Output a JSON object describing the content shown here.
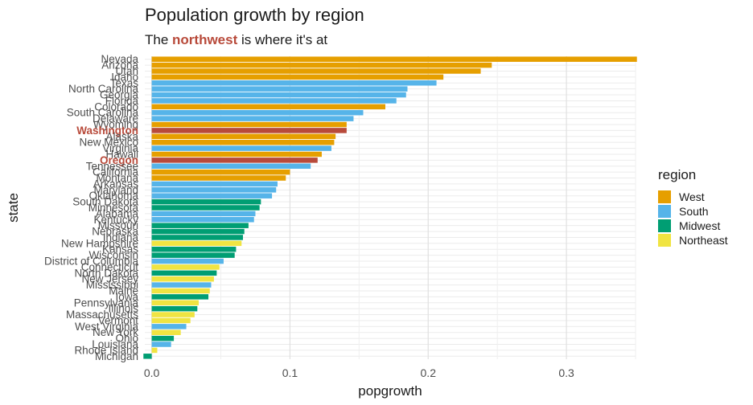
{
  "chart_data": {
    "type": "bar",
    "orientation": "horizontal",
    "title": "Population growth by region",
    "subtitle": {
      "before": "The ",
      "highlight": "northwest",
      "after": " is where it's at"
    },
    "xlabel": "popgrowth",
    "ylabel": "state",
    "xlim": [
      -0.005,
      0.35
    ],
    "xticks": [
      {
        "value": 0.0,
        "label": "0.0"
      },
      {
        "value": 0.1,
        "label": "0.1"
      },
      {
        "value": 0.2,
        "label": "0.2"
      },
      {
        "value": 0.3,
        "label": "0.3"
      }
    ],
    "grid": true,
    "legend": {
      "title": "region",
      "position": "right",
      "items": [
        {
          "name": "West",
          "color": "#E69F00"
        },
        {
          "name": "South",
          "color": "#56B4E9"
        },
        {
          "name": "Midwest",
          "color": "#009E73"
        },
        {
          "name": "Northeast",
          "color": "#F0E442"
        }
      ]
    },
    "highlight_color": "#B84A3A",
    "bars": [
      {
        "state": "Nevada",
        "value": 0.351,
        "region": "West"
      },
      {
        "state": "Arizona",
        "value": 0.246,
        "region": "West"
      },
      {
        "state": "Utah",
        "value": 0.238,
        "region": "West"
      },
      {
        "state": "Idaho",
        "value": 0.211,
        "region": "West"
      },
      {
        "state": "Texas",
        "value": 0.206,
        "region": "South"
      },
      {
        "state": "North Carolina",
        "value": 0.185,
        "region": "South"
      },
      {
        "state": "Georgia",
        "value": 0.184,
        "region": "South"
      },
      {
        "state": "Florida",
        "value": 0.177,
        "region": "South"
      },
      {
        "state": "Colorado",
        "value": 0.169,
        "region": "West"
      },
      {
        "state": "South Carolina",
        "value": 0.153,
        "region": "South"
      },
      {
        "state": "Delaware",
        "value": 0.146,
        "region": "South"
      },
      {
        "state": "Wyoming",
        "value": 0.141,
        "region": "West"
      },
      {
        "state": "Washington",
        "value": 0.141,
        "region": "West",
        "highlight": true
      },
      {
        "state": "Alaska",
        "value": 0.133,
        "region": "West"
      },
      {
        "state": "New Mexico",
        "value": 0.132,
        "region": "West"
      },
      {
        "state": "Virginia",
        "value": 0.13,
        "region": "South"
      },
      {
        "state": "Hawaii",
        "value": 0.123,
        "region": "West"
      },
      {
        "state": "Oregon",
        "value": 0.12,
        "region": "West",
        "highlight": true
      },
      {
        "state": "Tennessee",
        "value": 0.115,
        "region": "South"
      },
      {
        "state": "California",
        "value": 0.1,
        "region": "West"
      },
      {
        "state": "Montana",
        "value": 0.097,
        "region": "West"
      },
      {
        "state": "Arkansas",
        "value": 0.091,
        "region": "South"
      },
      {
        "state": "Maryland",
        "value": 0.09,
        "region": "South"
      },
      {
        "state": "Oklahoma",
        "value": 0.087,
        "region": "South"
      },
      {
        "state": "South Dakota",
        "value": 0.079,
        "region": "Midwest"
      },
      {
        "state": "Minnesota",
        "value": 0.078,
        "region": "Midwest"
      },
      {
        "state": "Alabama",
        "value": 0.075,
        "region": "South"
      },
      {
        "state": "Kentucky",
        "value": 0.074,
        "region": "South"
      },
      {
        "state": "Missouri",
        "value": 0.07,
        "region": "Midwest"
      },
      {
        "state": "Nebraska",
        "value": 0.067,
        "region": "Midwest"
      },
      {
        "state": "Indiana",
        "value": 0.066,
        "region": "Midwest"
      },
      {
        "state": "New Hampshire",
        "value": 0.065,
        "region": "Northeast"
      },
      {
        "state": "Kansas",
        "value": 0.061,
        "region": "Midwest"
      },
      {
        "state": "Wisconsin",
        "value": 0.06,
        "region": "Midwest"
      },
      {
        "state": "District of Columbia",
        "value": 0.052,
        "region": "South"
      },
      {
        "state": "Connecticut",
        "value": 0.049,
        "region": "Northeast"
      },
      {
        "state": "North Dakota",
        "value": 0.047,
        "region": "Midwest"
      },
      {
        "state": "New Jersey",
        "value": 0.045,
        "region": "Northeast"
      },
      {
        "state": "Mississippi",
        "value": 0.043,
        "region": "South"
      },
      {
        "state": "Maine",
        "value": 0.042,
        "region": "Northeast"
      },
      {
        "state": "Iowa",
        "value": 0.041,
        "region": "Midwest"
      },
      {
        "state": "Pennsylvania",
        "value": 0.034,
        "region": "Northeast"
      },
      {
        "state": "Illinois",
        "value": 0.033,
        "region": "Midwest"
      },
      {
        "state": "Massachusetts",
        "value": 0.031,
        "region": "Northeast"
      },
      {
        "state": "Vermont",
        "value": 0.028,
        "region": "Northeast"
      },
      {
        "state": "West Virginia",
        "value": 0.025,
        "region": "South"
      },
      {
        "state": "New York",
        "value": 0.021,
        "region": "Northeast"
      },
      {
        "state": "Ohio",
        "value": 0.016,
        "region": "Midwest"
      },
      {
        "state": "Louisiana",
        "value": 0.014,
        "region": "South"
      },
      {
        "state": "Rhode Island",
        "value": 0.004,
        "region": "Northeast"
      },
      {
        "state": "Michigan",
        "value": -0.006,
        "region": "Midwest"
      }
    ]
  }
}
